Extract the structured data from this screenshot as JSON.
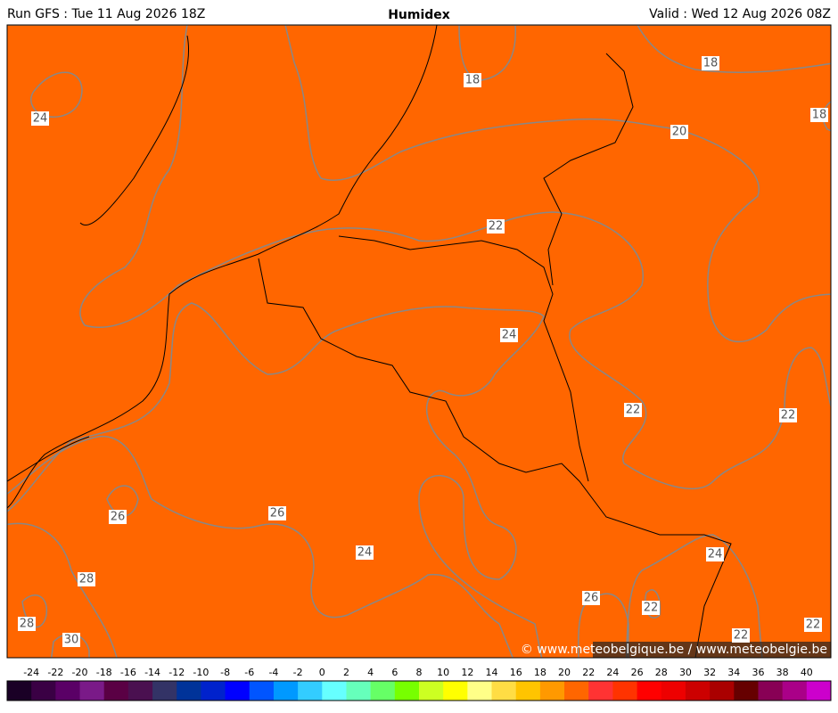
{
  "header": {
    "run": "Run GFS : Tue 11 Aug 2026 18Z",
    "title": "Humidex",
    "valid": "Valid : Wed 12 Aug 2026 08Z"
  },
  "contour_labels": [
    "18",
    "18",
    "18",
    "20",
    "22",
    "24",
    "24",
    "22",
    "22",
    "26",
    "26",
    "24",
    "28",
    "28",
    "30",
    "26",
    "24",
    "22",
    "22",
    "22"
  ],
  "copyright": "© www.meteobelgique.be / www.meteobelgie.be",
  "colorbar": {
    "labels": [
      -24,
      -22,
      -20,
      -18,
      -16,
      -14,
      -12,
      -10,
      -8,
      -6,
      -4,
      -2,
      0,
      2,
      4,
      6,
      8,
      10,
      12,
      14,
      16,
      18,
      20,
      22,
      24,
      26,
      28,
      30,
      32,
      34,
      36,
      38,
      40
    ],
    "colors": [
      "#1a0026",
      "#3a0044",
      "#5a0066",
      "#7a1a88",
      "#5a0044",
      "#4a1050",
      "#333366",
      "#003399",
      "#0022cc",
      "#0000ff",
      "#0055ff",
      "#0099ff",
      "#33ccff",
      "#66ffff",
      "#66ffbb",
      "#66ff66",
      "#77ff00",
      "#ccff22",
      "#ffff00",
      "#ffff88",
      "#ffdd44",
      "#ffc400",
      "#ff9900",
      "#ff6600",
      "#ff3333",
      "#ff3300",
      "#ff0000",
      "#ee0000",
      "#cc0000",
      "#aa0000",
      "#660000",
      "#880055",
      "#aa0088",
      "#cc00cc"
    ]
  }
}
